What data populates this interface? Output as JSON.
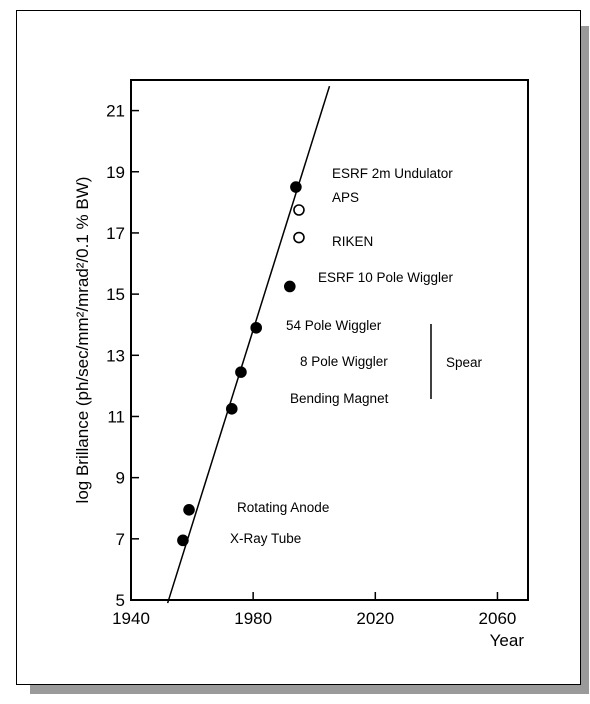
{
  "chart_data": {
    "type": "scatter",
    "title": "",
    "xlabel": "Year",
    "ylabel": "log Brillance (ph/sec/mm²/mrad²/0.1 % BW)",
    "xlim": [
      1940,
      2070
    ],
    "ylim": [
      5,
      22
    ],
    "x_ticks": [
      1940,
      1980,
      2020,
      2060
    ],
    "y_ticks": [
      5,
      7,
      9,
      11,
      13,
      15,
      17,
      19,
      21
    ],
    "grid": false,
    "trend_line": {
      "x": [
        1952,
        2005
      ],
      "y": [
        4.9,
        21.8
      ]
    },
    "series": [
      {
        "marker": "filled",
        "points": [
          {
            "x": 1957,
            "y": 6.95,
            "label": "X-Ray Tube"
          },
          {
            "x": 1959,
            "y": 7.95,
            "label": "Rotating Anode"
          },
          {
            "x": 1973,
            "y": 11.25,
            "label": "Bending Magnet"
          },
          {
            "x": 1976,
            "y": 12.45,
            "label": "8 Pole Wiggler"
          },
          {
            "x": 1981,
            "y": 13.9,
            "label": "54 Pole Wiggler"
          },
          {
            "x": 1992,
            "y": 15.25,
            "label": "ESRF 10 Pole Wiggler"
          },
          {
            "x": 1994,
            "y": 18.5,
            "label": "ESRF 2m Undulator"
          }
        ]
      },
      {
        "marker": "open",
        "points": [
          {
            "x": 1995,
            "y": 17.75,
            "label": "APS"
          },
          {
            "x": 1995,
            "y": 16.85,
            "label": "RIKEN"
          }
        ]
      }
    ],
    "group_annotation": {
      "label": "Spear",
      "members": [
        "54 Pole Wiggler",
        "8 Pole Wiggler",
        "Bending Magnet"
      ]
    }
  }
}
